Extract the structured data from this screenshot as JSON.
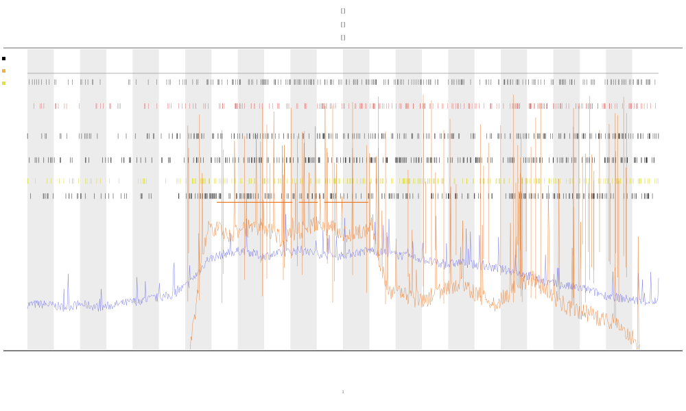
{
  "chart_data": {
    "type": "line",
    "title_lines": [
      "[  ]",
      "[       ]",
      "[       ]"
    ],
    "xlabel": "1",
    "ylabel": "",
    "legend": [
      {
        "name": "",
        "color": "#000000"
      },
      {
        "name": "",
        "color": "#f5b041"
      },
      {
        "name": "",
        "color": "#e3e33c"
      }
    ],
    "grid": "alternating-column-shading",
    "shade_color": "#ececec",
    "series": [
      {
        "name": "",
        "role": "baseline-signal",
        "color": "#6a6ae8",
        "values": [
          0.15,
          0.15,
          0.14,
          0.15,
          0.14,
          0.15,
          0.16,
          0.17,
          0.18,
          0.22,
          0.3,
          0.32,
          0.33,
          0.31,
          0.32,
          0.33,
          0.32,
          0.31,
          0.32,
          0.33,
          0.32,
          0.31,
          0.3,
          0.28,
          0.29,
          0.28,
          0.27,
          0.26,
          0.24,
          0.22,
          0.21,
          0.2,
          0.18,
          0.17,
          0.16,
          0.16
        ]
      },
      {
        "name": "",
        "role": "spike-signal",
        "color": "#e87a2a",
        "values": [
          0.0,
          0.0,
          0.0,
          0.0,
          0.0,
          0.0,
          0.0,
          0.0,
          0.0,
          0.0,
          0.42,
          0.38,
          0.4,
          0.41,
          0.37,
          0.39,
          0.42,
          0.4,
          0.38,
          0.41,
          0.2,
          0.18,
          0.16,
          0.2,
          0.22,
          0.18,
          0.15,
          0.2,
          0.24,
          0.18,
          0.14,
          0.12,
          0.1,
          0.08,
          0.0,
          0.0
        ]
      }
    ],
    "event_rows": [
      {
        "name": "",
        "color": "#555555",
        "level": 0.9
      },
      {
        "name": "",
        "color": "#e07070",
        "level": 0.82
      },
      {
        "name": "",
        "color": "#333333",
        "level": 0.72
      },
      {
        "name": "",
        "color": "#111111",
        "level": 0.64
      },
      {
        "name": "",
        "color": "#d9d92a",
        "level": 0.57
      },
      {
        "name": "",
        "color": "#222222",
        "level": 0.52
      }
    ],
    "threshold": {
      "level": 0.49,
      "color": "#e87a2a"
    },
    "ylim": [
      0,
      1
    ]
  }
}
